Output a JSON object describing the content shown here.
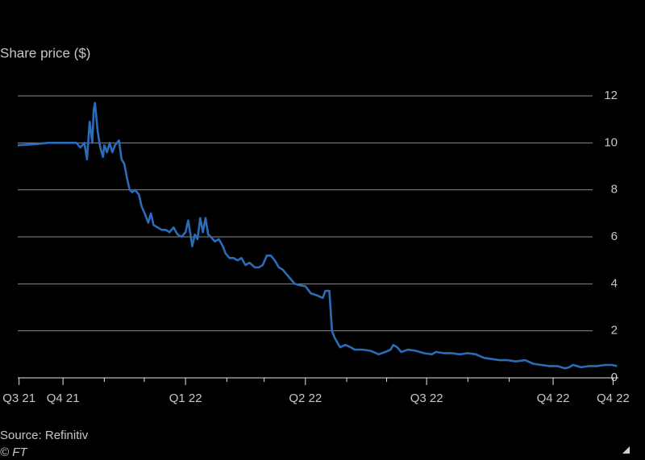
{
  "chart_data": {
    "type": "line",
    "title": "Share price ($)",
    "source": "Source: Refinitiv",
    "credit": "© FT",
    "x": [
      -126,
      -112,
      -103,
      -91,
      -82,
      -79,
      -76,
      -74,
      -72,
      -70,
      -69,
      -68,
      -66,
      -64,
      -62,
      -61,
      -59,
      -57,
      -55,
      -53,
      -50,
      -48,
      -46,
      -44,
      -42,
      -40,
      -38,
      -35,
      -33,
      -30,
      -28,
      -26,
      -24,
      -21,
      -18,
      -15,
      -12,
      -9,
      -6,
      -3,
      0,
      2,
      4,
      5,
      7,
      9,
      11,
      13,
      15,
      17,
      19,
      22,
      25,
      28,
      30,
      33,
      36,
      39,
      42,
      45,
      48,
      52,
      55,
      58,
      61,
      64,
      67,
      70,
      73,
      76,
      79,
      82,
      85,
      90,
      94,
      99,
      103,
      105,
      108,
      110,
      112,
      114,
      116,
      120,
      124,
      127,
      133,
      139,
      145,
      150,
      154,
      156,
      159,
      162,
      167,
      173,
      179,
      185,
      188,
      194,
      200,
      206,
      212,
      218,
      224,
      230,
      236,
      242,
      248,
      255,
      261,
      267,
      273,
      279,
      285,
      288,
      291,
      297,
      303,
      309,
      315,
      320,
      324
    ],
    "series": [
      {
        "name": "Share price",
        "color": "#2b6cb8",
        "values": [
          9.9,
          9.95,
          10.0,
          10.0,
          10.0,
          9.8,
          10.0,
          9.3,
          10.9,
          10.0,
          11.4,
          11.7,
          10.5,
          9.8,
          9.4,
          9.9,
          9.6,
          10.0,
          9.6,
          9.9,
          10.1,
          9.3,
          9.1,
          8.5,
          8.0,
          7.9,
          8.0,
          7.8,
          7.3,
          6.9,
          6.6,
          7.0,
          6.5,
          6.4,
          6.3,
          6.3,
          6.2,
          6.4,
          6.1,
          6.0,
          6.2,
          6.7,
          6.0,
          5.6,
          6.1,
          5.9,
          6.8,
          6.2,
          6.8,
          6.1,
          6.0,
          5.8,
          5.9,
          5.6,
          5.3,
          5.1,
          5.1,
          5.0,
          5.1,
          4.8,
          4.9,
          4.7,
          4.7,
          4.8,
          5.2,
          5.2,
          5.0,
          4.7,
          4.6,
          4.4,
          4.2,
          4.0,
          3.95,
          3.9,
          3.6,
          3.5,
          3.4,
          3.7,
          3.7,
          2.0,
          1.7,
          1.5,
          1.3,
          1.4,
          1.3,
          1.2,
          1.2,
          1.15,
          1.0,
          1.1,
          1.2,
          1.4,
          1.3,
          1.1,
          1.2,
          1.15,
          1.05,
          1.0,
          1.1,
          1.05,
          1.05,
          1.0,
          1.05,
          1.0,
          0.85,
          0.8,
          0.75,
          0.75,
          0.7,
          0.75,
          0.6,
          0.55,
          0.5,
          0.5,
          0.4,
          0.45,
          0.55,
          0.45,
          0.5,
          0.5,
          0.55,
          0.55,
          0.5
        ]
      }
    ],
    "xlim": [
      -126,
      325
    ],
    "xticks": [
      {
        "value": -125,
        "label": "Q3 21"
      },
      {
        "value": -92,
        "label": "Q4 21"
      },
      {
        "value": 0,
        "label": "Q1 22"
      },
      {
        "value": 90,
        "label": "Q2 22"
      },
      {
        "value": 181,
        "label": "Q3 22"
      },
      {
        "value": 276,
        "label": "Q4 22"
      },
      {
        "value": 321,
        "label": "Q4 22"
      }
    ],
    "xminorticks": [
      -61,
      -31,
      31,
      59,
      121,
      151,
      212,
      243
    ],
    "ylim": [
      0,
      12
    ],
    "yticks": [
      0,
      2,
      4,
      6,
      8,
      10,
      12
    ],
    "grid": true
  }
}
